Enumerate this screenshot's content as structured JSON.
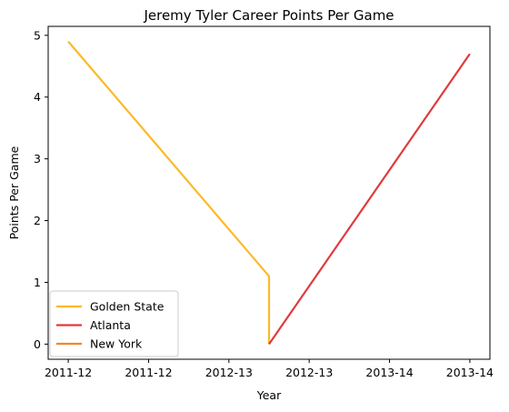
{
  "chart_data": {
    "type": "line",
    "title": "Jeremy Tyler Career Points Per Game",
    "xlabel": "Year",
    "ylabel": "Points Per Game",
    "x_tick_labels": [
      "2011-12",
      "2011-12",
      "2012-13",
      "2012-13",
      "2013-14",
      "2013-14"
    ],
    "x_tick_values": [
      0,
      0.5,
      1,
      1.5,
      2,
      2.5
    ],
    "xlim": [
      -0.125,
      2.625
    ],
    "y_tick_values": [
      0,
      1,
      2,
      3,
      4,
      5
    ],
    "y_tick_labels": [
      "0",
      "1",
      "2",
      "3",
      "4",
      "5"
    ],
    "ylim": [
      -0.245,
      5.145
    ],
    "grid": false,
    "legend_position": "lower-left",
    "series": [
      {
        "name": "Golden State",
        "color": "#FDB927",
        "points": [
          [
            0,
            4.9
          ],
          [
            1.25,
            1.1
          ],
          [
            1.25,
            0.0
          ]
        ]
      },
      {
        "name": "Atlanta",
        "color": "#E03A3E",
        "points": [
          [
            1.25,
            0.0
          ],
          [
            2.5,
            4.7
          ]
        ]
      },
      {
        "name": "New York",
        "color": "#F58426",
        "points": []
      }
    ]
  }
}
